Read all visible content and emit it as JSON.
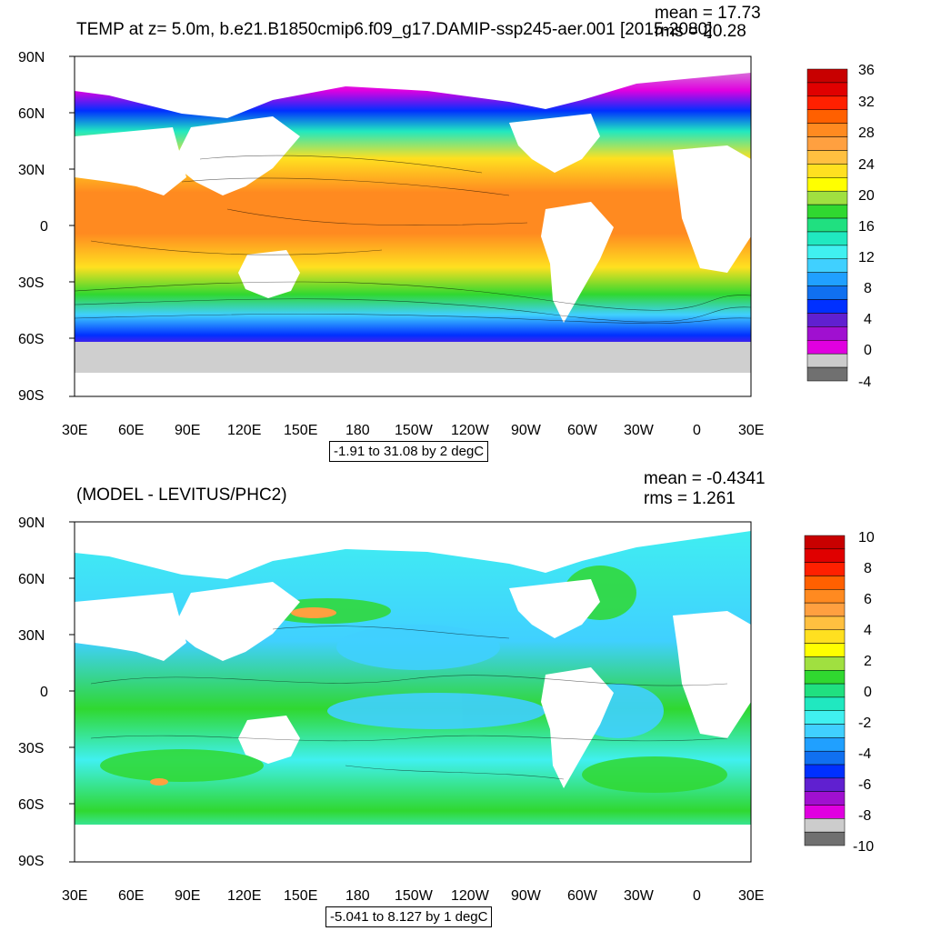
{
  "top": {
    "title": "TEMP at z=   5.0m, b.e21.B1850cmip6.f09_g17.DAMIP-ssp245-aer.001 [2015-2080]",
    "mean": "mean = 17.73",
    "rms": "rms = 20.28",
    "range": "-1.91 to 31.08 by 2 degC",
    "colorbar_labels": [
      "36",
      "32",
      "28",
      "24",
      "20",
      "16",
      "12",
      "8",
      "4",
      "0",
      "-4"
    ],
    "colorbar_colors": [
      "#c80000",
      "#e00000",
      "#ff2000",
      "#ff6000",
      "#ff8a20",
      "#ffa040",
      "#ffc040",
      "#ffe020",
      "#ffff00",
      "#a0e040",
      "#30d830",
      "#20e080",
      "#20e8c0",
      "#40f0f0",
      "#40d0ff",
      "#20a0ff",
      "#1070f0",
      "#0030ff",
      "#6020d0",
      "#a010d0",
      "#e000e0",
      "#cccccc",
      "#707070"
    ]
  },
  "bottom": {
    "title": "(MODEL - LEVITUS/PHC2)",
    "mean": "mean = -0.4341",
    "rms": "rms = 1.261",
    "range": "-5.041 to 8.127 by 1 degC",
    "colorbar_labels": [
      "10",
      "8",
      "6",
      "4",
      "2",
      "0",
      "-2",
      "-4",
      "-6",
      "-8",
      "-10"
    ],
    "colorbar_colors": [
      "#c80000",
      "#e00000",
      "#ff2000",
      "#ff6000",
      "#ff8a20",
      "#ffa040",
      "#ffc040",
      "#ffe020",
      "#ffff00",
      "#a0e040",
      "#30d830",
      "#20e080",
      "#20e8c0",
      "#40f0f0",
      "#40d0ff",
      "#20a0ff",
      "#1070f0",
      "#0030ff",
      "#6020d0",
      "#a010d0",
      "#e000e0",
      "#cccccc",
      "#707070"
    ]
  },
  "axes": {
    "lat_labels": [
      "90N",
      "60N",
      "30N",
      "0",
      "30S",
      "60S",
      "90S"
    ],
    "lon_labels": [
      "30E",
      "60E",
      "90E",
      "120E",
      "150E",
      "180",
      "150W",
      "120W",
      "90W",
      "60W",
      "30W",
      "0",
      "30E"
    ]
  }
}
